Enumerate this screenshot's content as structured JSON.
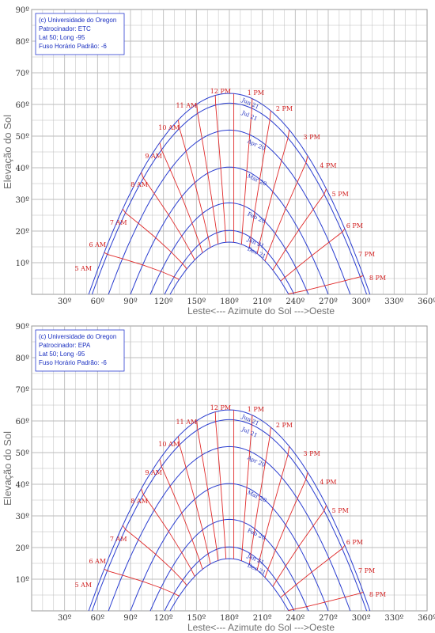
{
  "colors": {
    "date_curve": "#2a3dd0",
    "hour_curve": "#e02a2a",
    "grid": "#bcbcbc",
    "info_text": "#1a2fc0",
    "axis_label": "#707070"
  },
  "chart_data": [
    {
      "type": "line",
      "ylabel": "Elevação do Sol",
      "xlabel": "Leste<---  Azimute do Sol  --->Oeste",
      "xlim": [
        0,
        360
      ],
      "ylim": [
        0,
        90
      ],
      "x_ticks": [
        30,
        60,
        90,
        120,
        150,
        180,
        210,
        240,
        270,
        300,
        330,
        360
      ],
      "x_tick_labels": [
        "30º",
        "60º",
        "90º",
        "120º",
        "150º",
        "180º",
        "210º",
        "240º",
        "270º",
        "300º",
        "330º",
        "360º"
      ],
      "y_ticks": [
        10,
        20,
        30,
        40,
        50,
        60,
        70,
        80,
        90
      ],
      "y_tick_labels": [
        "10º",
        "20º",
        "30º",
        "40º",
        "50º",
        "60º",
        "70º",
        "80º",
        "90º"
      ],
      "grid": true,
      "info_box": [
        "(c) Universidade do Oregon",
        "Patrocinador: ETC",
        "Lat 50; Long -95",
        "Fuso Horário Padrão: -6"
      ],
      "date_series": [
        {
          "name": "Jun 21",
          "noon_elevation": 63.5,
          "sunrise_azimuth": 52
        },
        {
          "name": "Jul 21",
          "noon_elevation": 60.4,
          "sunrise_azimuth": 55
        },
        {
          "name": "Apr 20",
          "noon_elevation": 51.9,
          "sunrise_azimuth": 70
        },
        {
          "name": "Mar 20",
          "noon_elevation": 40.2,
          "sunrise_azimuth": 90
        },
        {
          "name": "Feb 20",
          "noon_elevation": 28.9,
          "sunrise_azimuth": 108
        },
        {
          "name": "Jan 21",
          "noon_elevation": 20.2,
          "sunrise_azimuth": 121
        },
        {
          "name": "Dec 21",
          "noon_elevation": 16.5,
          "sunrise_azimuth": 126
        }
      ],
      "hour_labels": [
        "5 AM",
        "6 AM",
        "7 AM",
        "8 AM",
        "9 AM",
        "10 AM",
        "11 AM",
        "12 PM",
        "1 PM",
        "2 PM",
        "3 PM",
        "4 PM",
        "5 PM",
        "6 PM",
        "7 PM",
        "8 PM"
      ],
      "hour_label_points": [
        [
          47,
          7.5
        ],
        [
          60,
          15
        ],
        [
          79,
          22
        ],
        [
          98,
          34
        ],
        [
          111,
          43
        ],
        [
          125,
          52
        ],
        [
          141,
          59
        ],
        [
          172,
          63.5
        ],
        [
          204,
          63
        ],
        [
          230,
          58
        ],
        [
          255,
          49
        ],
        [
          270,
          40
        ],
        [
          281,
          31
        ],
        [
          294,
          21
        ],
        [
          305,
          12
        ],
        [
          315,
          4.5
        ]
      ],
      "date_label_points": [
        [
          191,
          61
        ],
        [
          191,
          57
        ],
        [
          196,
          48
        ],
        [
          196,
          37
        ],
        [
          196,
          25
        ],
        [
          196,
          17
        ],
        [
          196,
          14
        ]
      ]
    },
    {
      "type": "line",
      "ylabel": "Elevação do Sol",
      "xlabel": "Leste<---  Azimute do Sol  --->Oeste",
      "xlim": [
        0,
        360
      ],
      "ylim": [
        0,
        90
      ],
      "x_ticks": [
        30,
        60,
        90,
        120,
        150,
        180,
        210,
        240,
        270,
        300,
        330,
        360
      ],
      "x_tick_labels": [
        "30º",
        "60º",
        "90º",
        "120º",
        "150º",
        "180º",
        "210º",
        "240º",
        "270º",
        "300º",
        "330º",
        "360º"
      ],
      "y_ticks": [
        10,
        20,
        30,
        40,
        50,
        60,
        70,
        80,
        90
      ],
      "y_tick_labels": [
        "10º",
        "20º",
        "30º",
        "40º",
        "50º",
        "60º",
        "70º",
        "80º",
        "90º"
      ],
      "grid": true,
      "info_box": [
        "(c) Universidade do Oregon",
        "Patrocinador: EPA",
        "Lat 50; Long -95",
        "Fuso Horário Padrão: -6"
      ],
      "date_series": [
        {
          "name": "Jun 21",
          "noon_elevation": 63.5,
          "sunrise_azimuth": 52
        },
        {
          "name": "Jul 21",
          "noon_elevation": 60.4,
          "sunrise_azimuth": 55
        },
        {
          "name": "Apr 20",
          "noon_elevation": 51.9,
          "sunrise_azimuth": 70
        },
        {
          "name": "Mar 20",
          "noon_elevation": 40.2,
          "sunrise_azimuth": 90
        },
        {
          "name": "Feb 20",
          "noon_elevation": 28.9,
          "sunrise_azimuth": 108
        },
        {
          "name": "Jan 21",
          "noon_elevation": 20.2,
          "sunrise_azimuth": 121
        },
        {
          "name": "Dec 21",
          "noon_elevation": 16.5,
          "sunrise_azimuth": 126
        }
      ],
      "hour_labels": [
        "5 AM",
        "6 AM",
        "7 AM",
        "8 AM",
        "9 AM",
        "10 AM",
        "11 AM",
        "12 PM",
        "1 PM",
        "2 PM",
        "3 PM",
        "4 PM",
        "5 PM",
        "6 PM",
        "7 PM",
        "8 PM"
      ],
      "hour_label_points": [
        [
          47,
          7.5
        ],
        [
          60,
          15
        ],
        [
          79,
          22
        ],
        [
          98,
          34
        ],
        [
          111,
          43
        ],
        [
          125,
          52
        ],
        [
          141,
          59
        ],
        [
          172,
          63.5
        ],
        [
          204,
          63
        ],
        [
          230,
          58
        ],
        [
          255,
          49
        ],
        [
          270,
          40
        ],
        [
          281,
          31
        ],
        [
          294,
          21
        ],
        [
          305,
          12
        ],
        [
          315,
          4.5
        ]
      ],
      "date_label_points": [
        [
          191,
          61
        ],
        [
          191,
          57
        ],
        [
          196,
          48
        ],
        [
          196,
          37
        ],
        [
          196,
          25
        ],
        [
          196,
          17
        ],
        [
          196,
          14
        ]
      ]
    }
  ]
}
